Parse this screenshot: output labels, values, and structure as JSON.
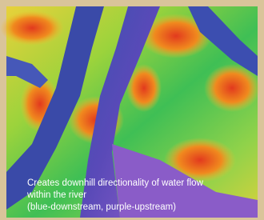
{
  "caption": {
    "lines": [
      "Creates downhill directionality of water flow",
      "within the river",
      "(blue-downstream, purple-upstream)"
    ]
  }
}
